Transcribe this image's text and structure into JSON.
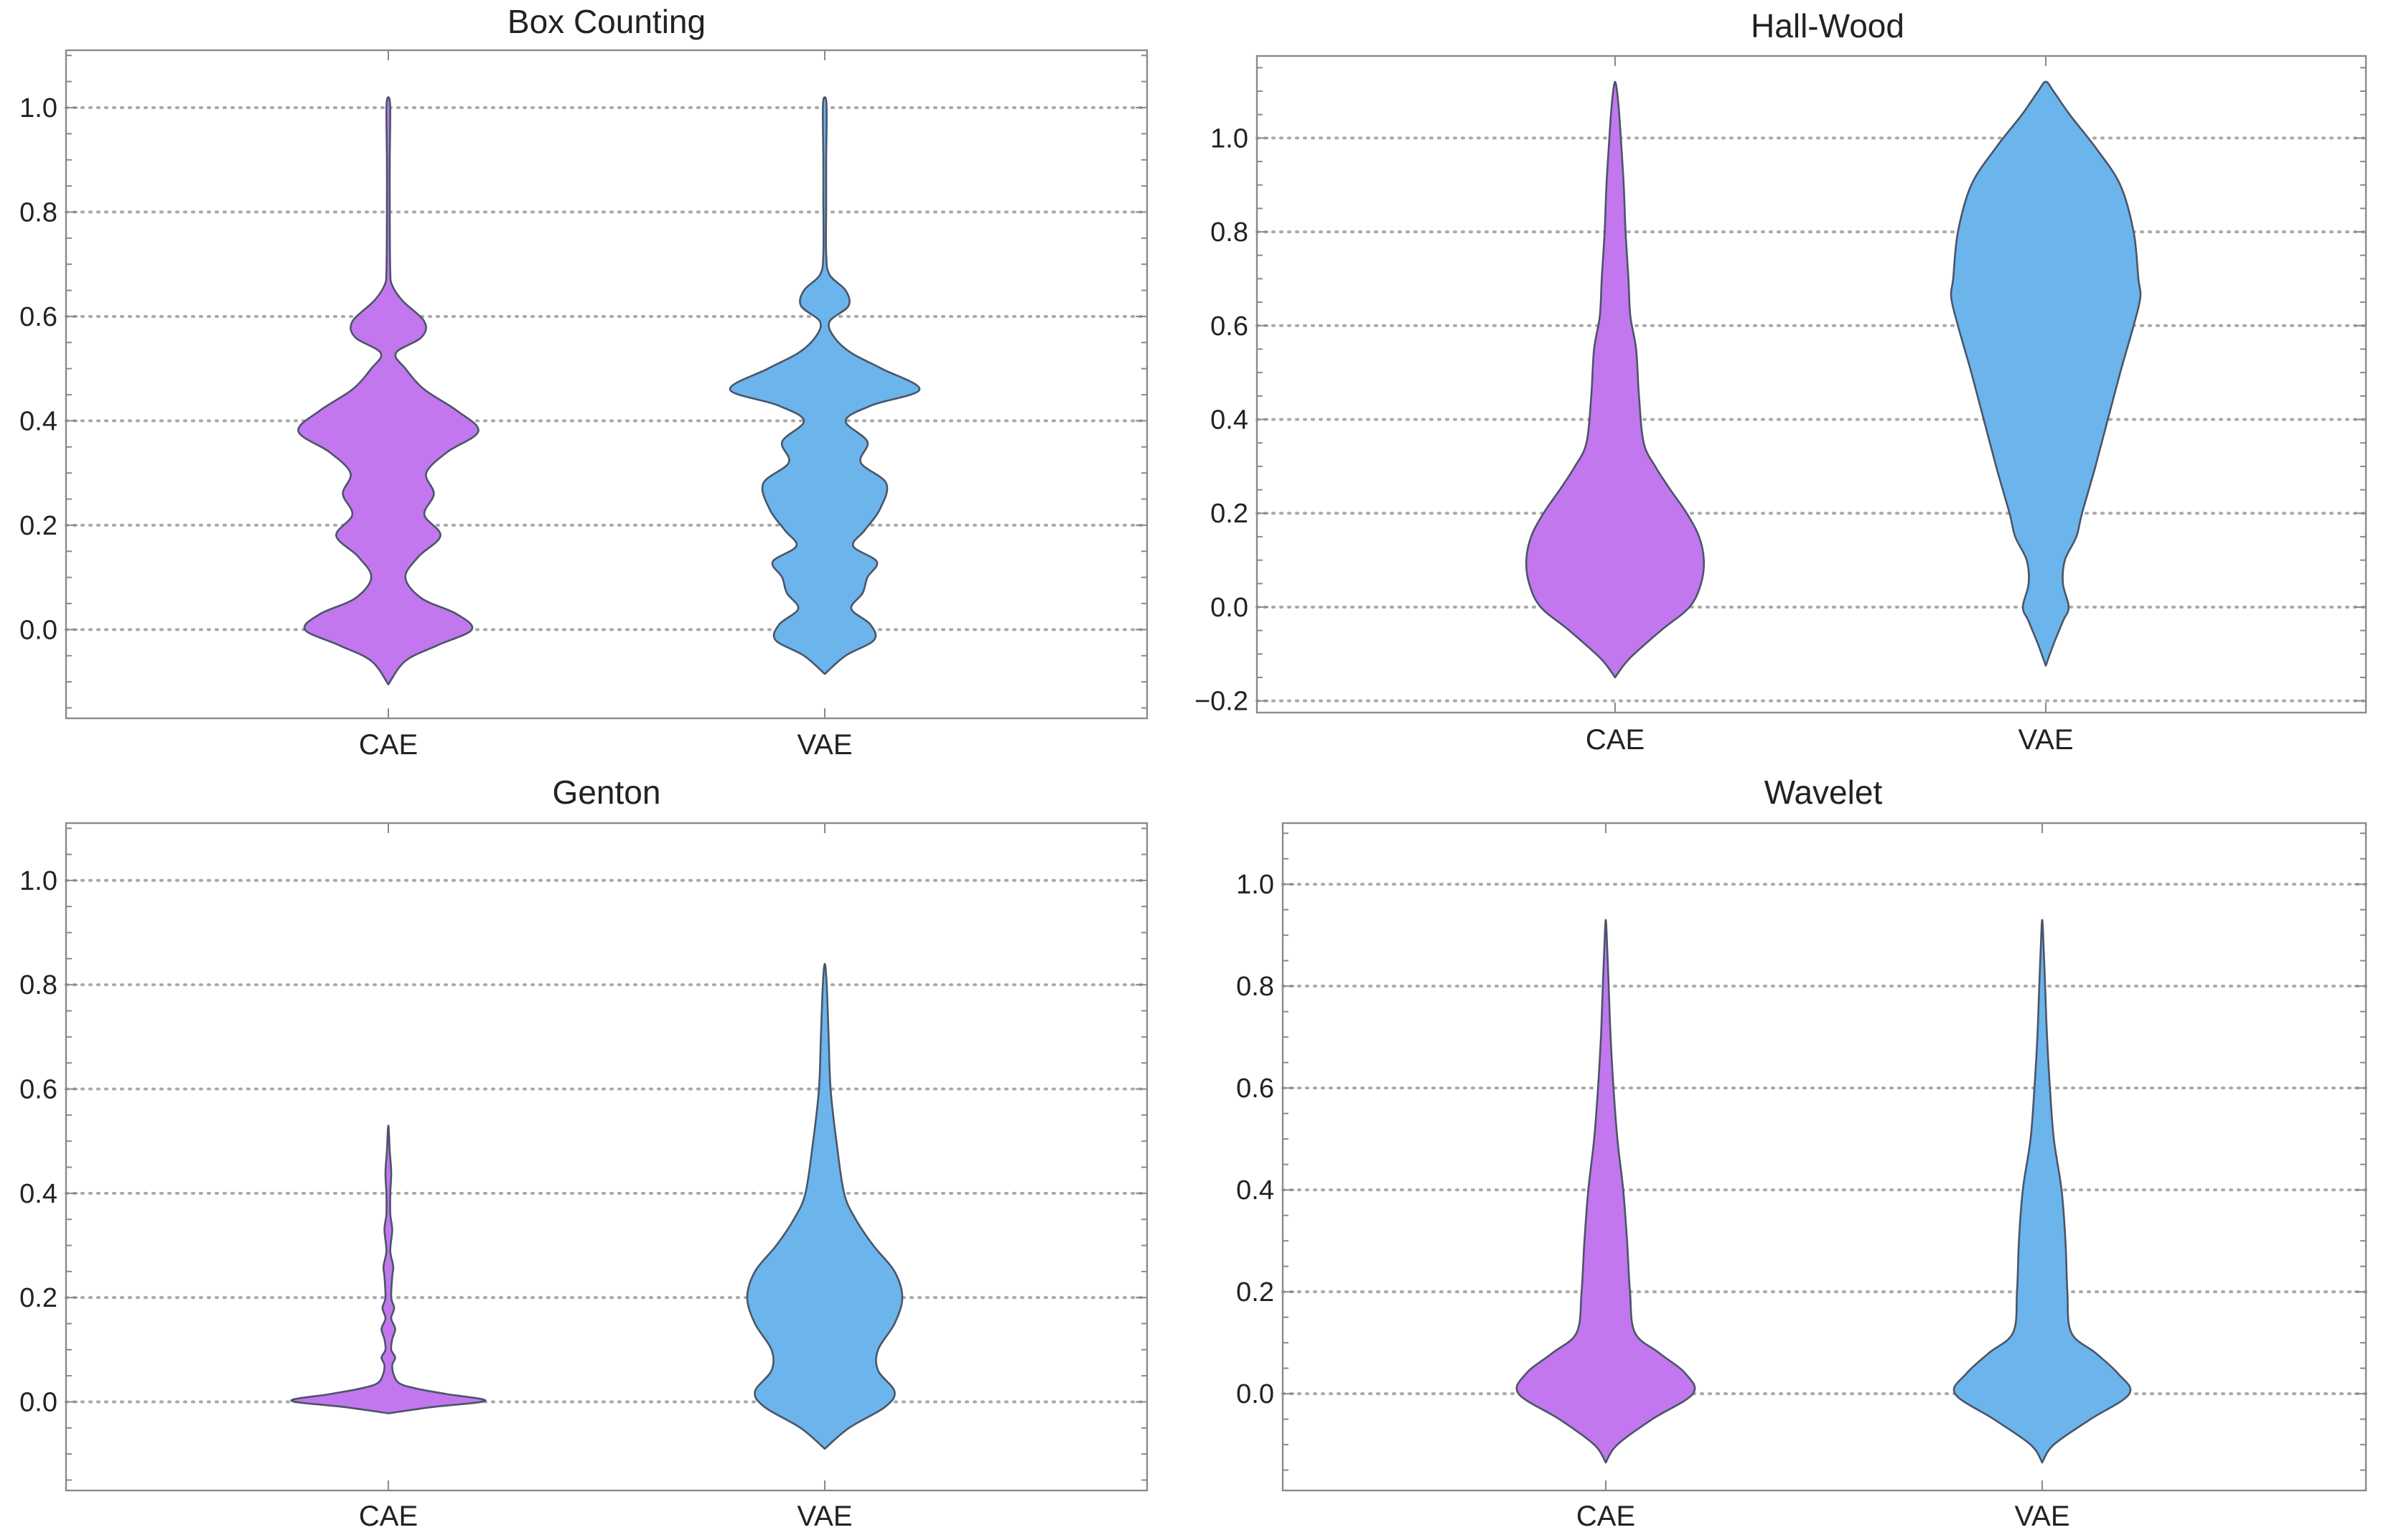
{
  "chart_data": [
    {
      "type": "violin",
      "title": "Box Counting",
      "categories": [
        "CAE",
        "VAE"
      ],
      "ylim": [
        -0.17,
        1.11
      ],
      "yticks": [
        "0.0",
        "0.2",
        "0.4",
        "0.6",
        "0.8",
        "1.0"
      ],
      "grid_at": [
        0.0,
        0.2,
        0.4,
        0.6,
        0.8,
        1.0
      ],
      "series": [
        {
          "name": "CAE",
          "color": "#c277ee",
          "shape": [
            [
              -0.105,
              0
            ],
            [
              -0.06,
              0.18
            ],
            [
              -0.03,
              0.52
            ],
            [
              0.0,
              0.88
            ],
            [
              0.03,
              0.72
            ],
            [
              0.06,
              0.35
            ],
            [
              0.1,
              0.18
            ],
            [
              0.14,
              0.32
            ],
            [
              0.18,
              0.55
            ],
            [
              0.22,
              0.38
            ],
            [
              0.26,
              0.48
            ],
            [
              0.3,
              0.4
            ],
            [
              0.34,
              0.62
            ],
            [
              0.38,
              0.95
            ],
            [
              0.42,
              0.72
            ],
            [
              0.46,
              0.38
            ],
            [
              0.5,
              0.18
            ],
            [
              0.53,
              0.08
            ],
            [
              0.56,
              0.35
            ],
            [
              0.59,
              0.38
            ],
            [
              0.63,
              0.15
            ],
            [
              0.66,
              0.04
            ],
            [
              0.69,
              0.02
            ],
            [
              0.8,
              0.015
            ],
            [
              0.9,
              0.015
            ],
            [
              1.0,
              0.02
            ],
            [
              1.02,
              0.0
            ]
          ]
        },
        {
          "name": "VAE",
          "color": "#6cb4ec",
          "shape": [
            [
              -0.085,
              0
            ],
            [
              -0.05,
              0.22
            ],
            [
              -0.02,
              0.52
            ],
            [
              0.01,
              0.48
            ],
            [
              0.04,
              0.28
            ],
            [
              0.07,
              0.4
            ],
            [
              0.1,
              0.45
            ],
            [
              0.13,
              0.55
            ],
            [
              0.16,
              0.3
            ],
            [
              0.19,
              0.42
            ],
            [
              0.23,
              0.58
            ],
            [
              0.28,
              0.65
            ],
            [
              0.32,
              0.38
            ],
            [
              0.36,
              0.45
            ],
            [
              0.4,
              0.22
            ],
            [
              0.43,
              0.5
            ],
            [
              0.46,
              1.0
            ],
            [
              0.5,
              0.6
            ],
            [
              0.53,
              0.28
            ],
            [
              0.56,
              0.1
            ],
            [
              0.59,
              0.05
            ],
            [
              0.62,
              0.25
            ],
            [
              0.65,
              0.22
            ],
            [
              0.68,
              0.05
            ],
            [
              0.72,
              0.015
            ],
            [
              0.82,
              0.015
            ],
            [
              0.9,
              0.015
            ],
            [
              1.0,
              0.02
            ],
            [
              1.02,
              0.0
            ]
          ]
        }
      ]
    },
    {
      "type": "violin",
      "title": "Hall-Wood",
      "categories": [
        "CAE",
        "VAE"
      ],
      "ylim": [
        -0.225,
        1.175
      ],
      "yticks": [
        "−0.2",
        "0.0",
        "0.2",
        "0.4",
        "0.6",
        "0.8",
        "1.0"
      ],
      "grid_at": [
        -0.2,
        0.0,
        0.2,
        0.4,
        0.6,
        0.8,
        1.0
      ],
      "series": [
        {
          "name": "CAE",
          "color": "#c277ee",
          "shape": [
            [
              -0.15,
              0
            ],
            [
              -0.11,
              0.15
            ],
            [
              -0.05,
              0.48
            ],
            [
              0.0,
              0.78
            ],
            [
              0.05,
              0.9
            ],
            [
              0.1,
              0.93
            ],
            [
              0.15,
              0.88
            ],
            [
              0.2,
              0.75
            ],
            [
              0.25,
              0.58
            ],
            [
              0.3,
              0.42
            ],
            [
              0.35,
              0.3
            ],
            [
              0.45,
              0.25
            ],
            [
              0.55,
              0.22
            ],
            [
              0.62,
              0.16
            ],
            [
              0.7,
              0.14
            ],
            [
              0.8,
              0.11
            ],
            [
              0.9,
              0.09
            ],
            [
              1.0,
              0.06
            ],
            [
              1.06,
              0.04
            ],
            [
              1.1,
              0.02
            ],
            [
              1.12,
              0.0
            ]
          ]
        },
        {
          "name": "VAE",
          "color": "#6cb4ec",
          "shape": [
            [
              -0.125,
              0
            ],
            [
              -0.08,
              0.08
            ],
            [
              -0.03,
              0.18
            ],
            [
              0.0,
              0.24
            ],
            [
              0.05,
              0.18
            ],
            [
              0.1,
              0.2
            ],
            [
              0.15,
              0.32
            ],
            [
              0.2,
              0.38
            ],
            [
              0.3,
              0.52
            ],
            [
              0.4,
              0.65
            ],
            [
              0.5,
              0.78
            ],
            [
              0.6,
              0.92
            ],
            [
              0.66,
              0.99
            ],
            [
              0.7,
              0.97
            ],
            [
              0.8,
              0.92
            ],
            [
              0.9,
              0.78
            ],
            [
              0.98,
              0.52
            ],
            [
              1.05,
              0.25
            ],
            [
              1.1,
              0.08
            ],
            [
              1.12,
              0.0
            ]
          ]
        }
      ]
    },
    {
      "type": "violin",
      "title": "Genton",
      "categories": [
        "CAE",
        "VAE"
      ],
      "ylim": [
        -0.17,
        1.11
      ],
      "yticks": [
        "0.0",
        "0.2",
        "0.4",
        "0.6",
        "0.8",
        "1.0"
      ],
      "grid_at": [
        0.0,
        0.2,
        0.4,
        0.6,
        0.8,
        1.0
      ],
      "series": [
        {
          "name": "CAE",
          "color": "#c277ee",
          "shape": [
            [
              -0.022,
              0
            ],
            [
              -0.01,
              0.45
            ],
            [
              0.002,
              1.0
            ],
            [
              0.015,
              0.6
            ],
            [
              0.025,
              0.3
            ],
            [
              0.035,
              0.12
            ],
            [
              0.05,
              0.06
            ],
            [
              0.07,
              0.04
            ],
            [
              0.085,
              0.07
            ],
            [
              0.1,
              0.03
            ],
            [
              0.12,
              0.04
            ],
            [
              0.14,
              0.07
            ],
            [
              0.16,
              0.03
            ],
            [
              0.18,
              0.06
            ],
            [
              0.2,
              0.03
            ],
            [
              0.24,
              0.04
            ],
            [
              0.26,
              0.05
            ],
            [
              0.29,
              0.02
            ],
            [
              0.33,
              0.04
            ],
            [
              0.36,
              0.02
            ],
            [
              0.4,
              0.02
            ],
            [
              0.44,
              0.03
            ],
            [
              0.48,
              0.015
            ],
            [
              0.53,
              0.0
            ]
          ]
        },
        {
          "name": "VAE",
          "color": "#6cb4ec",
          "shape": [
            [
              -0.09,
              0
            ],
            [
              -0.05,
              0.25
            ],
            [
              -0.01,
              0.62
            ],
            [
              0.02,
              0.72
            ],
            [
              0.06,
              0.55
            ],
            [
              0.1,
              0.55
            ],
            [
              0.15,
              0.72
            ],
            [
              0.2,
              0.8
            ],
            [
              0.25,
              0.72
            ],
            [
              0.3,
              0.5
            ],
            [
              0.35,
              0.32
            ],
            [
              0.4,
              0.2
            ],
            [
              0.5,
              0.12
            ],
            [
              0.6,
              0.06
            ],
            [
              0.7,
              0.04
            ],
            [
              0.8,
              0.02
            ],
            [
              0.84,
              0.0
            ]
          ]
        }
      ]
    },
    {
      "type": "violin",
      "title": "Wavelet",
      "categories": [
        "CAE",
        "VAE"
      ],
      "ylim": [
        -0.19,
        1.12
      ],
      "yticks": [
        "0.0",
        "0.2",
        "0.4",
        "0.6",
        "0.8",
        "1.0"
      ],
      "grid_at": [
        0.0,
        0.2,
        0.4,
        0.6,
        0.8,
        1.0
      ],
      "series": [
        {
          "name": "CAE",
          "color": "#c277ee",
          "shape": [
            [
              -0.135,
              0
            ],
            [
              -0.1,
              0.12
            ],
            [
              -0.05,
              0.48
            ],
            [
              0.0,
              0.9
            ],
            [
              0.04,
              0.82
            ],
            [
              0.08,
              0.55
            ],
            [
              0.12,
              0.3
            ],
            [
              0.2,
              0.25
            ],
            [
              0.3,
              0.22
            ],
            [
              0.4,
              0.18
            ],
            [
              0.5,
              0.12
            ],
            [
              0.6,
              0.08
            ],
            [
              0.7,
              0.05
            ],
            [
              0.8,
              0.03
            ],
            [
              0.9,
              0.01
            ],
            [
              0.93,
              0.0
            ]
          ]
        },
        {
          "name": "VAE",
          "color": "#6cb4ec",
          "shape": [
            [
              -0.135,
              0
            ],
            [
              -0.1,
              0.12
            ],
            [
              -0.05,
              0.5
            ],
            [
              0.0,
              0.9
            ],
            [
              0.04,
              0.78
            ],
            [
              0.08,
              0.55
            ],
            [
              0.12,
              0.3
            ],
            [
              0.2,
              0.26
            ],
            [
              0.3,
              0.24
            ],
            [
              0.4,
              0.2
            ],
            [
              0.5,
              0.12
            ],
            [
              0.6,
              0.08
            ],
            [
              0.7,
              0.05
            ],
            [
              0.8,
              0.03
            ],
            [
              0.9,
              0.01
            ],
            [
              0.93,
              0.0
            ]
          ]
        }
      ]
    }
  ]
}
